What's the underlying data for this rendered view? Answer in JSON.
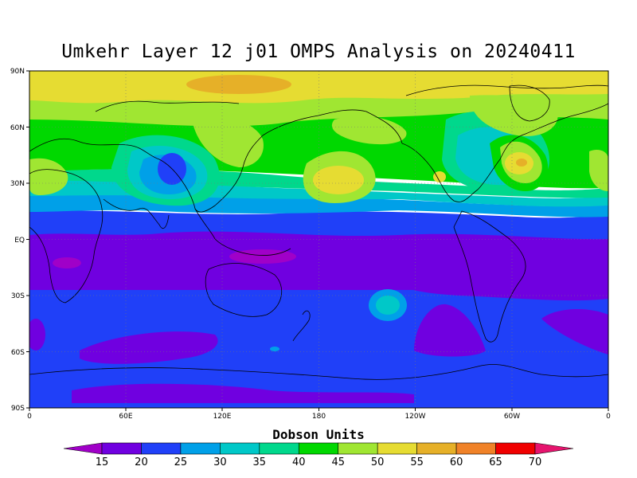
{
  "title": "Umkehr Layer 12 j01 OMPS Analysis on 20240411",
  "lat_labels": [
    "90N",
    "60N",
    "30N",
    "EQ",
    "30S",
    "60S",
    "90S"
  ],
  "lon_labels": [
    "0",
    "60E",
    "120E",
    "180",
    "120W",
    "60W",
    "0"
  ],
  "colorbar": {
    "title": "Dobson Units",
    "levels": [
      "15",
      "20",
      "25",
      "30",
      "35",
      "40",
      "45",
      "50",
      "55",
      "60",
      "65",
      "70"
    ],
    "colors": [
      "#a000c8",
      "#7000e0",
      "#2040f8",
      "#00a0e8",
      "#00c8c8",
      "#00d88c",
      "#00d800",
      "#a0e632",
      "#e6dc32",
      "#e6b028",
      "#f08228",
      "#f00000",
      "#e6146e"
    ]
  },
  "map_colors": {
    "lt15": "#a000c8",
    "c15_20": "#7000e0",
    "c20_25": "#2040f8",
    "c25_30": "#00a0e8",
    "c30_35": "#00c8c8",
    "c35_40": "#00d88c",
    "c40_45": "#00d800",
    "c45_50": "#a0e632",
    "c50_55": "#e6dc32",
    "c55_60": "#e6b028"
  }
}
